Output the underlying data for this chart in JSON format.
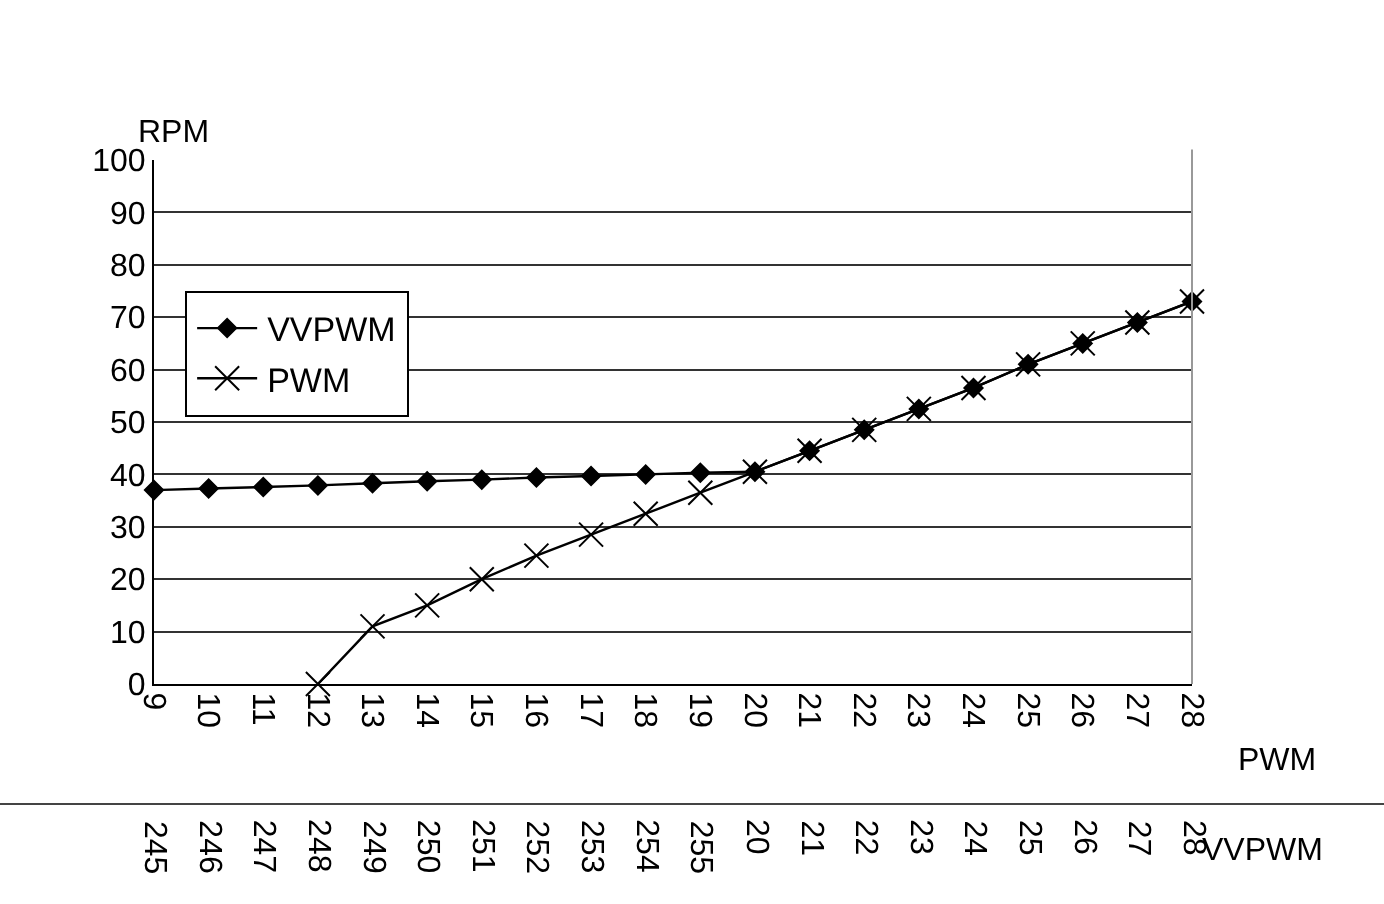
{
  "chart_data": {
    "type": "line",
    "ylabel": "RPM",
    "xlabel": "PWM",
    "categories": [
      "9",
      "10",
      "11",
      "12",
      "13",
      "14",
      "15",
      "16",
      "17",
      "18",
      "19",
      "20",
      "21",
      "22",
      "23",
      "24",
      "25",
      "26",
      "27",
      "28"
    ],
    "series": [
      {
        "name": "VVPWM",
        "color": "#000000",
        "marker": "diamond",
        "values": [
          37,
          37.3,
          37.6,
          37.9,
          38.3,
          38.7,
          39,
          39.4,
          39.7,
          40,
          40.3,
          40.5,
          44.5,
          48.5,
          52.5,
          56.5,
          61,
          65,
          69,
          73
        ]
      },
      {
        "name": "PWM",
        "color": "#000000",
        "marker": "cross",
        "values": [
          null,
          null,
          null,
          0,
          11,
          15,
          20,
          24.5,
          28.5,
          32.5,
          36.5,
          40.5,
          44.5,
          48.5,
          52.5,
          56.5,
          61,
          65,
          69,
          73
        ]
      }
    ],
    "ylim": [
      0,
      100
    ],
    "yticks": [
      0,
      10,
      20,
      30,
      40,
      50,
      60,
      70,
      80,
      90,
      100
    ],
    "grid": "y",
    "legend": "top left",
    "line_style": "solid",
    "annotations": [
      "245",
      "246",
      "247",
      "248",
      "249",
      "250",
      "251",
      "252",
      "253",
      "254",
      "255",
      "20",
      "21",
      "22",
      "23",
      "24",
      "25",
      "26",
      "27",
      "28",
      "VVPWM"
    ]
  }
}
